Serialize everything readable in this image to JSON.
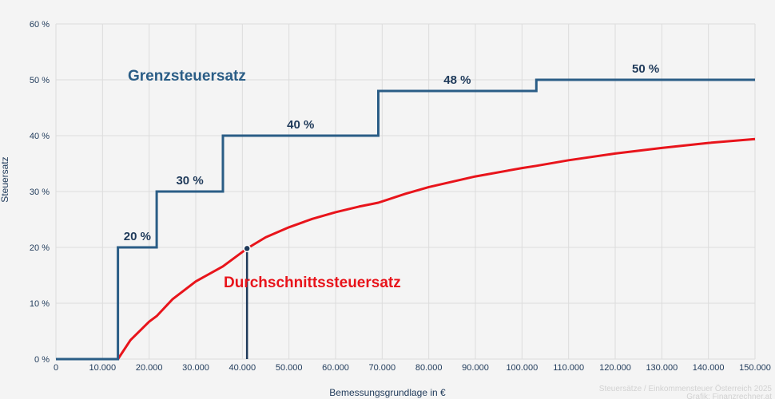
{
  "chart_data": {
    "type": "line",
    "ylabel": "Steuersatz",
    "xlabel": "Bemessungsgrundlage in €",
    "xlim": [
      0,
      150000
    ],
    "ylim": [
      0,
      60
    ],
    "x_ticks": [
      0,
      10000,
      20000,
      30000,
      40000,
      50000,
      60000,
      70000,
      80000,
      90000,
      100000,
      110000,
      120000,
      130000,
      140000,
      150000
    ],
    "x_tick_labels": [
      "0",
      "10.000",
      "20.000",
      "30.000",
      "40.000",
      "50.000",
      "60.000",
      "70.000",
      "80.000",
      "90.000",
      "100.000",
      "110.000",
      "120.000",
      "130.000",
      "140.000",
      "150.000"
    ],
    "y_ticks": [
      0,
      10,
      20,
      30,
      40,
      50,
      60
    ],
    "y_tick_labels": [
      "0 %",
      "10 %",
      "20 %",
      "30 %",
      "40 %",
      "50 %",
      "60 %"
    ],
    "grid": true,
    "series": [
      {
        "name": "Grenzsteuersatz",
        "color": "#2a5d86",
        "style": "step",
        "brackets": [
          {
            "from": 0,
            "to": 13308,
            "rate": 0
          },
          {
            "from": 13308,
            "to": 21617,
            "rate": 20
          },
          {
            "from": 21617,
            "to": 35836,
            "rate": 30
          },
          {
            "from": 35836,
            "to": 69166,
            "rate": 40
          },
          {
            "from": 69166,
            "to": 103072,
            "rate": 48
          },
          {
            "from": 103072,
            "to": 150000,
            "rate": 50
          }
        ],
        "bracket_labels": [
          "20 %",
          "30 %",
          "40 %",
          "48 %",
          "50 %"
        ]
      },
      {
        "name": "Durchschnittssteuersatz",
        "color": "#e8141b",
        "points": [
          {
            "x": 0,
            "y": 0
          },
          {
            "x": 13308,
            "y": 0
          },
          {
            "x": 16000,
            "y": 3.4
          },
          {
            "x": 20000,
            "y": 6.7
          },
          {
            "x": 21617,
            "y": 7.7
          },
          {
            "x": 25000,
            "y": 10.7
          },
          {
            "x": 30000,
            "y": 13.9
          },
          {
            "x": 35836,
            "y": 16.6
          },
          {
            "x": 41000,
            "y": 19.8
          },
          {
            "x": 45000,
            "y": 21.8
          },
          {
            "x": 50000,
            "y": 23.6
          },
          {
            "x": 55000,
            "y": 25.1
          },
          {
            "x": 60000,
            "y": 26.3
          },
          {
            "x": 65000,
            "y": 27.3
          },
          {
            "x": 69166,
            "y": 28.0
          },
          {
            "x": 75000,
            "y": 29.6
          },
          {
            "x": 80000,
            "y": 30.8
          },
          {
            "x": 90000,
            "y": 32.7
          },
          {
            "x": 100000,
            "y": 34.2
          },
          {
            "x": 103072,
            "y": 34.6
          },
          {
            "x": 110000,
            "y": 35.6
          },
          {
            "x": 120000,
            "y": 36.8
          },
          {
            "x": 130000,
            "y": 37.8
          },
          {
            "x": 140000,
            "y": 38.7
          },
          {
            "x": 150000,
            "y": 39.4
          }
        ]
      }
    ],
    "marker": {
      "x": 41000,
      "y": 19.8,
      "color": "#1f3a5a"
    }
  },
  "credit": {
    "line1": "Steuersätze / Einkommensteuer Österreich 2025",
    "line2": "Grafik: Finanzrechner.at"
  }
}
